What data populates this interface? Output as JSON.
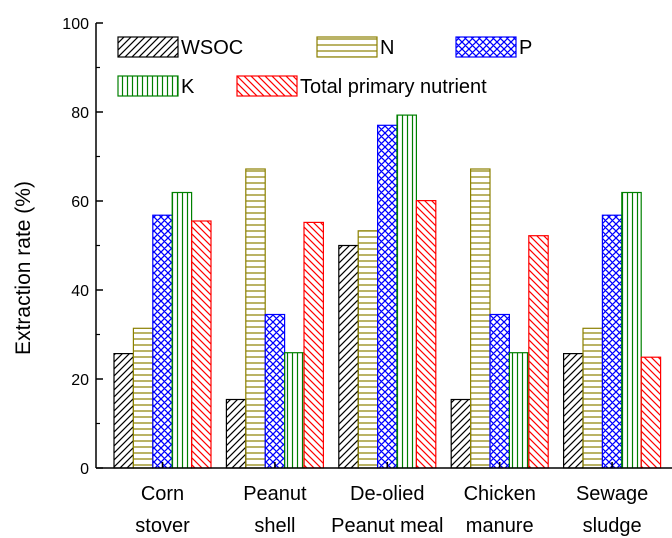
{
  "chart_data": {
    "type": "bar",
    "categories": [
      [
        "Corn",
        "stover"
      ],
      [
        "Peanut",
        "shell"
      ],
      [
        "De-olied",
        "Peanut meal"
      ],
      [
        "Chicken",
        "manure"
      ],
      [
        "Sewage",
        "sludge"
      ]
    ],
    "series": [
      {
        "name": "WSOC",
        "values": [
          25.7,
          15.4,
          50.0,
          15.4,
          25.7
        ],
        "color": "#000000",
        "pattern": "diagonal"
      },
      {
        "name": "N",
        "values": [
          31.4,
          67.2,
          53.3,
          67.2,
          31.4
        ],
        "color": "#8b8000",
        "pattern": "horizontal"
      },
      {
        "name": "P",
        "values": [
          56.8,
          34.5,
          77.0,
          34.5,
          56.8
        ],
        "color": "#0000ff",
        "pattern": "crosshatch"
      },
      {
        "name": "K",
        "values": [
          61.9,
          25.9,
          79.3,
          25.9,
          61.9
        ],
        "color": "#008000",
        "pattern": "vertical"
      },
      {
        "name": "Total primary nutrient",
        "values": [
          55.5,
          55.2,
          60.1,
          52.2,
          24.9
        ],
        "color": "#ff0000",
        "pattern": "diagonal-reverse"
      }
    ],
    "ylabel": "Extraction rate (%)",
    "xlabel": "",
    "ylim": [
      0,
      100
    ],
    "yticks": [
      0,
      20,
      40,
      60,
      80,
      100
    ],
    "grid": false,
    "legend_placement": "top-left"
  }
}
